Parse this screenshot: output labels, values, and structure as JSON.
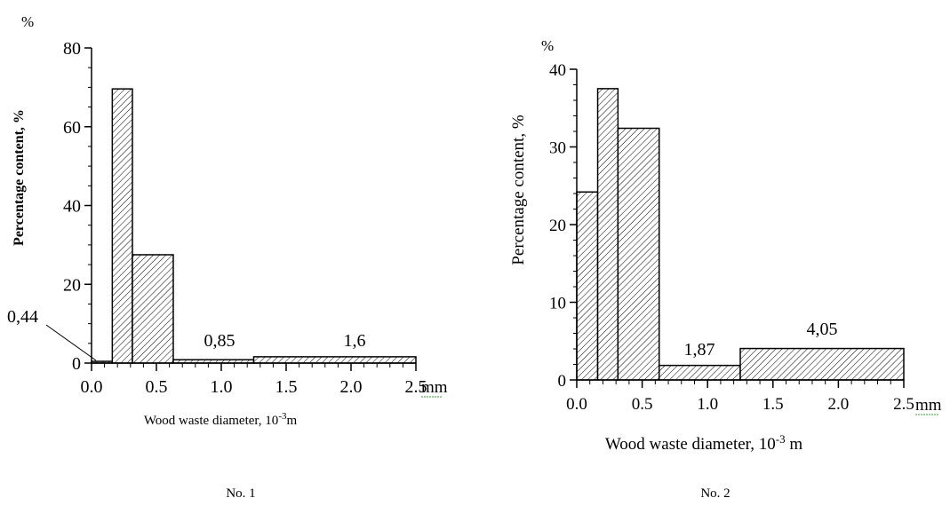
{
  "chart_data": [
    {
      "type": "bar",
      "percent_sign": "%",
      "ylabel": "Percentage  content, %",
      "xlabel_base": "Wood waste diameter, 10",
      "xlabel_exp": "-3",
      "xlabel_unit": "m",
      "x_unit": "mm",
      "caption": "No. 1",
      "xlim": [
        0,
        2.5
      ],
      "ylim": [
        0,
        80
      ],
      "xticks": [
        "0.0",
        "0.5",
        "1.0",
        "1.5",
        "2.0",
        "2.5"
      ],
      "yticks": [
        "0",
        "20",
        "40",
        "60",
        "80"
      ],
      "bins": [
        {
          "x0": 0.0,
          "x1": 0.16,
          "value": 0.44
        },
        {
          "x0": 0.16,
          "x1": 0.315,
          "value": 69.6
        },
        {
          "x0": 0.315,
          "x1": 0.63,
          "value": 27.5
        },
        {
          "x0": 0.63,
          "x1": 1.25,
          "value": 0.85
        },
        {
          "x0": 1.25,
          "x1": 2.5,
          "value": 1.6
        }
      ],
      "annotations": [
        "0,44",
        "0,85",
        "1,6"
      ]
    },
    {
      "type": "bar",
      "percent_sign": "%",
      "ylabel": "Percentage content, %",
      "xlabel_base": "Wood waste diameter, 10",
      "xlabel_exp": "-3",
      "xlabel_unit": " m",
      "x_unit": "mm",
      "caption": "No. 2",
      "xlim": [
        0,
        2.5
      ],
      "ylim": [
        0,
        40
      ],
      "xticks": [
        "0.0",
        "0.5",
        "1.0",
        "1.5",
        "2.0",
        "2.5"
      ],
      "yticks": [
        "0",
        "10",
        "20",
        "30",
        "40"
      ],
      "bins": [
        {
          "x0": 0.0,
          "x1": 0.16,
          "value": 24.2
        },
        {
          "x0": 0.16,
          "x1": 0.315,
          "value": 37.5
        },
        {
          "x0": 0.315,
          "x1": 0.63,
          "value": 32.4
        },
        {
          "x0": 0.63,
          "x1": 1.25,
          "value": 1.87
        },
        {
          "x0": 1.25,
          "x1": 2.5,
          "value": 4.05
        }
      ],
      "annotations": [
        "1,87",
        "4,05"
      ]
    }
  ]
}
